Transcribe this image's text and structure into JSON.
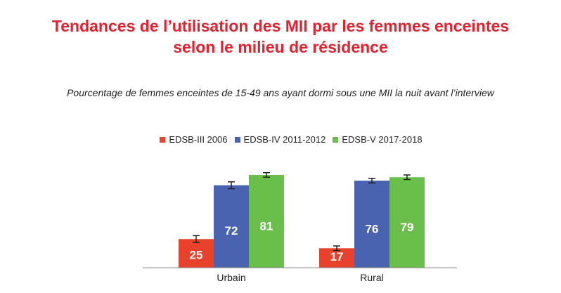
{
  "chart_data": {
    "type": "bar",
    "title": "Tendances de l’utilisation des MII par les femmes enceintes selon le milieu de résidence",
    "title_lines": [
      "Tendances de l’utilisation des MII par les femmes enceintes",
      "selon le milieu de résidence"
    ],
    "subtitle": "Pourcentage de femmes enceintes de 15-49 ans ayant dormi sous une MII la nuit avant l’interview",
    "categories": [
      "Urbain",
      "Rural"
    ],
    "series": [
      {
        "name": "EDSB-III 2006",
        "color": "#e8412c",
        "values": [
          25,
          17
        ],
        "error": [
          3,
          2
        ]
      },
      {
        "name": "EDSB-IV 2011-2012",
        "color": "#4a63b0",
        "values": [
          72,
          76
        ],
        "error": [
          3,
          2
        ]
      },
      {
        "name": "EDSB-V 2017-2018",
        "color": "#6abf4b",
        "values": [
          81,
          79
        ],
        "error": [
          2,
          2
        ]
      }
    ],
    "ylim": [
      0,
      100
    ],
    "grid": false,
    "legend_position": "top-center"
  }
}
